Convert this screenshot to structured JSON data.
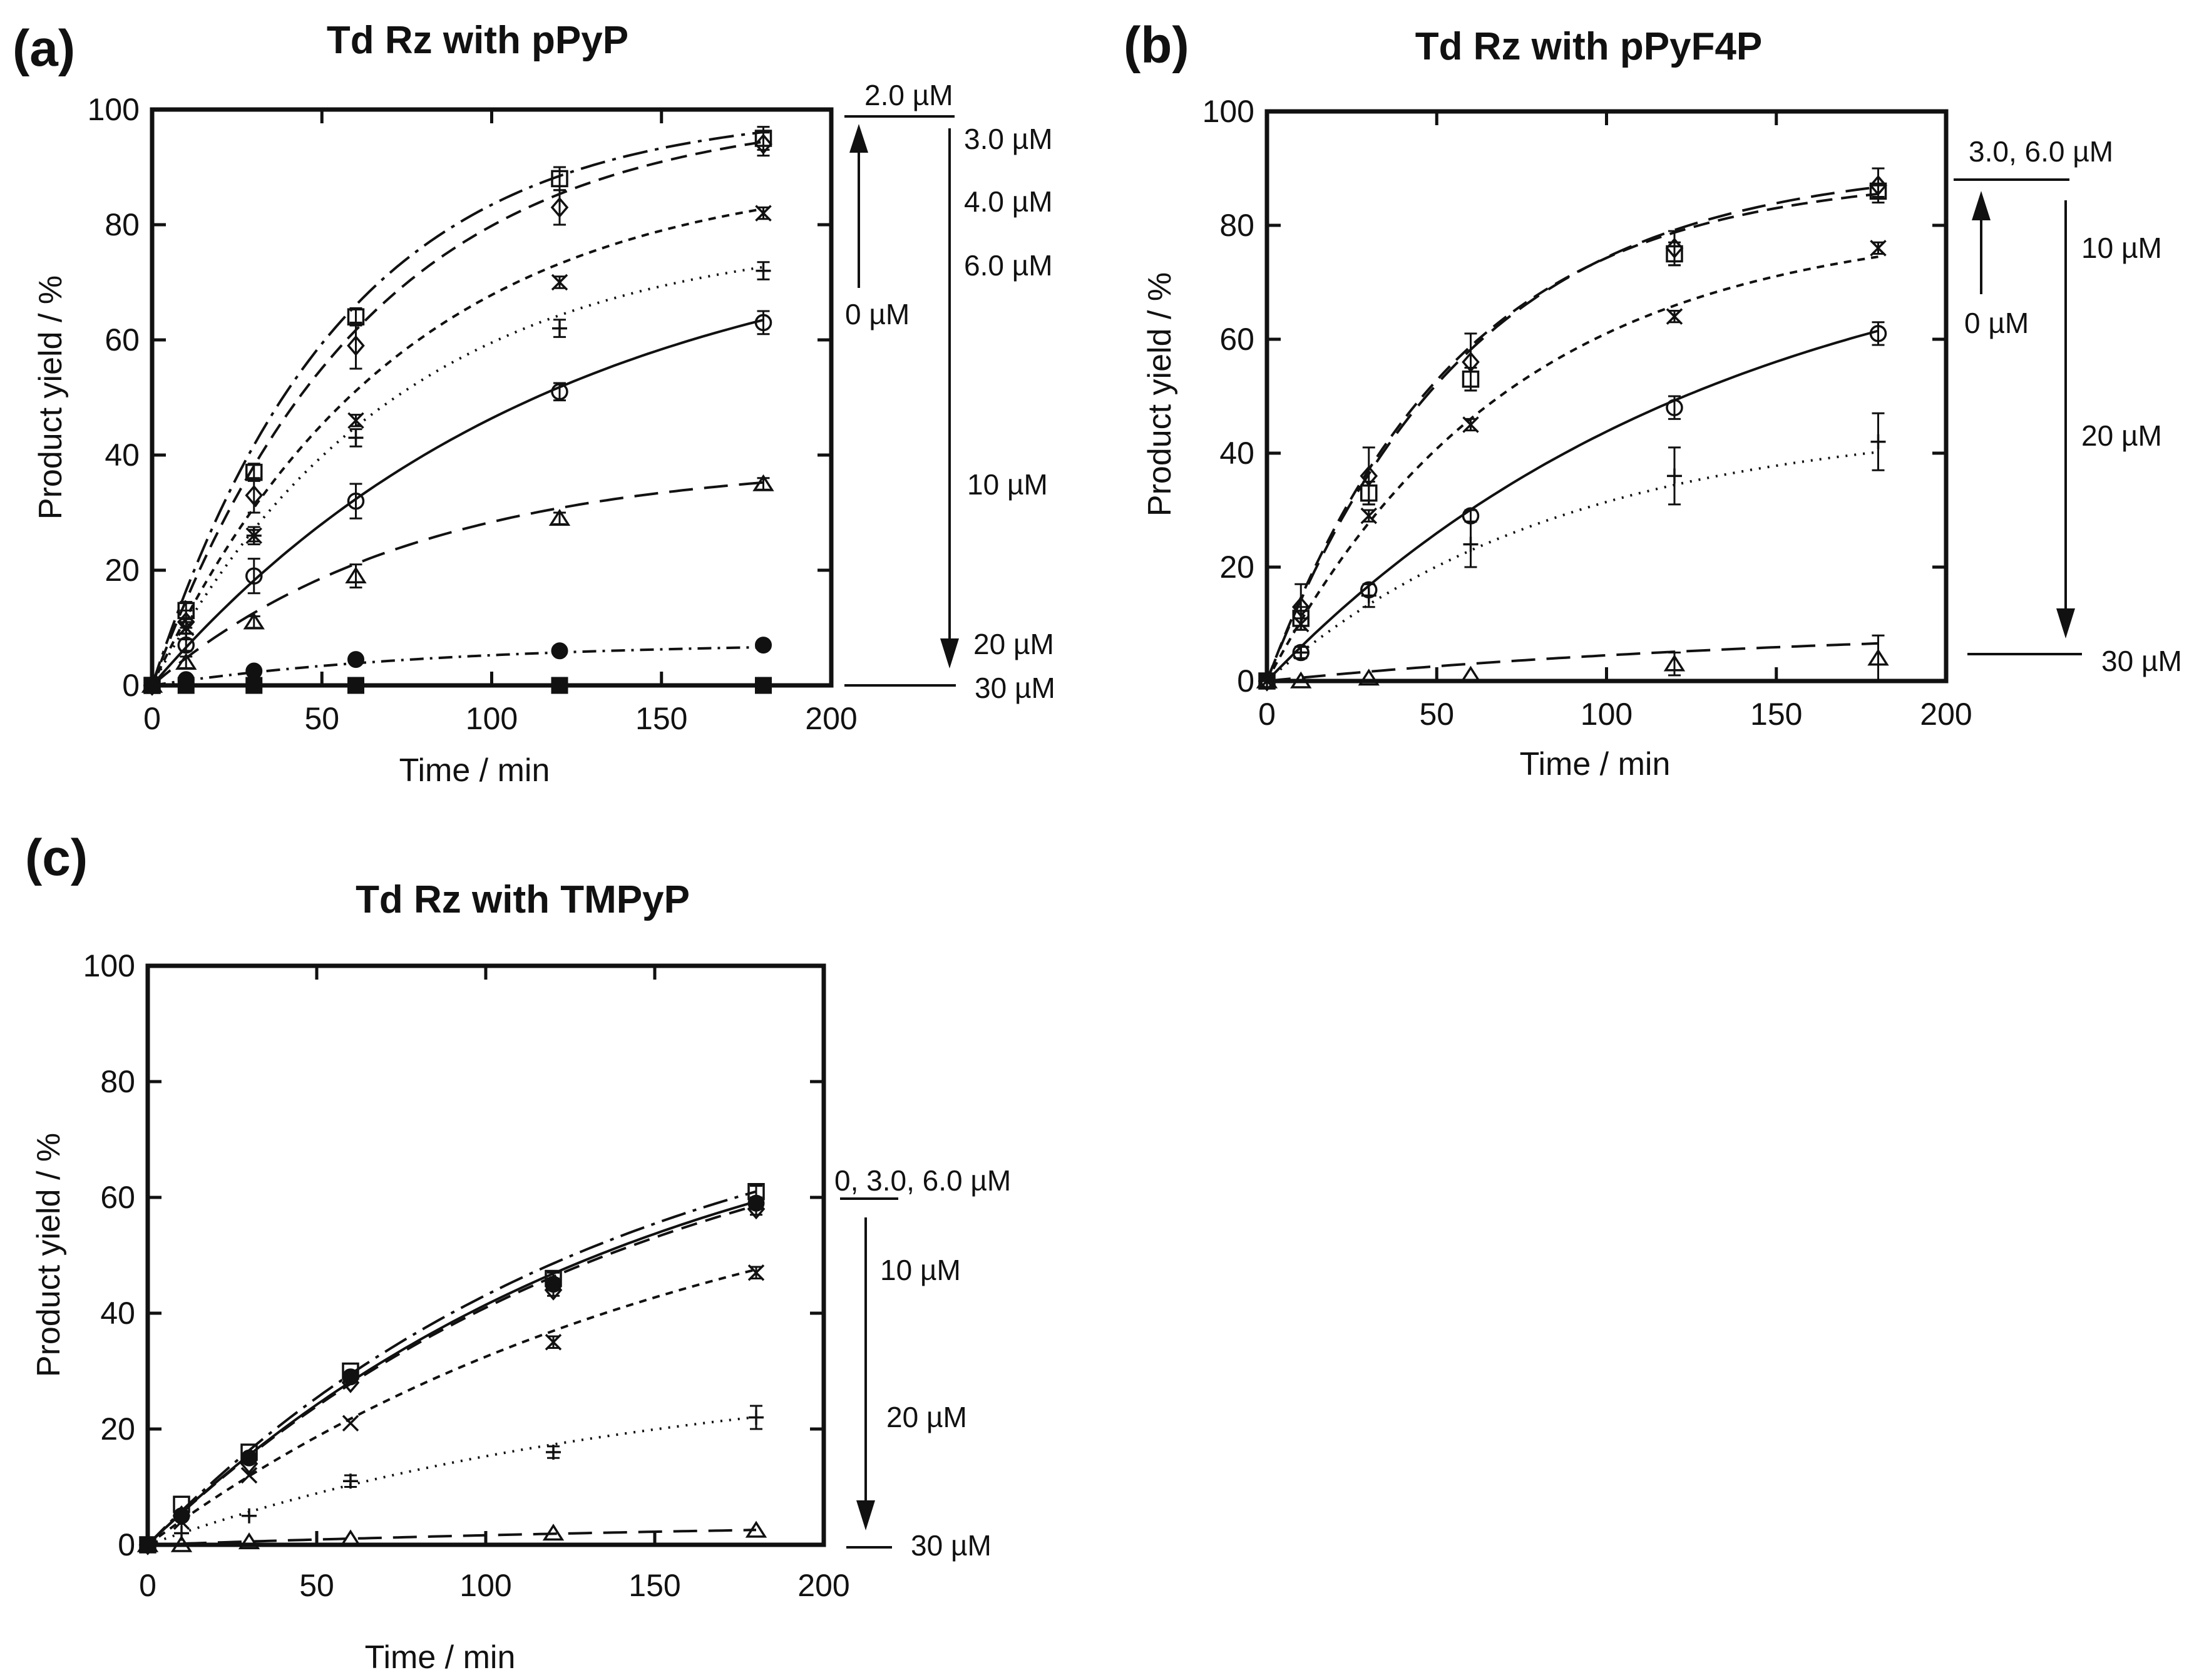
{
  "figure": {
    "units": {
      "x": "Time / min",
      "y": "Product yield / %"
    }
  },
  "chart_data": [
    {
      "id": "a",
      "panel_label": "(a)",
      "type": "line",
      "title": "Td Rz with pPyP",
      "xlabel": "Time / min",
      "ylabel": "Product yield / %",
      "xlim": [
        0,
        200
      ],
      "ylim": [
        0,
        100
      ],
      "xticks": [
        "0",
        "50",
        "100",
        "150",
        "200"
      ],
      "yticks": [
        "0",
        "20",
        "40",
        "60",
        "80",
        "100"
      ],
      "series": [
        {
          "name": "2.0 µM",
          "marker": "square",
          "dash": "longdashdot",
          "rate": 0.018,
          "plateau": 100,
          "x": [
            0,
            10,
            30,
            60,
            120,
            180
          ],
          "y": [
            0,
            13,
            37,
            64,
            88,
            95
          ],
          "err": [
            0,
            1.5,
            1.5,
            1.5,
            2,
            2
          ]
        },
        {
          "name": "3.0 µM",
          "marker": "diamond",
          "dash": "dash",
          "rate": 0.016,
          "plateau": 100,
          "x": [
            0,
            10,
            30,
            60,
            120,
            180
          ],
          "y": [
            0,
            11,
            33,
            59,
            83,
            94
          ],
          "err": [
            0,
            2,
            3,
            4,
            3,
            2
          ]
        },
        {
          "name": "4.0 µM",
          "marker": "x",
          "dash": "shortdash",
          "rate": 0.014,
          "plateau": 90,
          "x": [
            0,
            10,
            30,
            60,
            120,
            180
          ],
          "y": [
            0,
            10,
            26,
            46,
            70,
            82
          ],
          "err": [
            0,
            1,
            1.5,
            1,
            1,
            1
          ]
        },
        {
          "name": "6.0 µM",
          "marker": "plus",
          "dash": "dot",
          "rate": 0.014,
          "plateau": 79,
          "x": [
            0,
            10,
            30,
            60,
            120,
            180
          ],
          "y": [
            0,
            9,
            26,
            43,
            62,
            72
          ],
          "err": [
            0,
            1,
            1,
            1.5,
            1.5,
            1.5
          ]
        },
        {
          "name": "0 µM",
          "marker": "circle",
          "dash": "solid",
          "rate": 0.0085,
          "plateau": 81,
          "x": [
            0,
            10,
            30,
            60,
            120,
            180
          ],
          "y": [
            0,
            7,
            19,
            32,
            51,
            63
          ],
          "err": [
            0,
            1,
            3,
            3,
            1.5,
            2
          ]
        },
        {
          "name": "10 µM",
          "marker": "triangle",
          "dash": "longdash",
          "rate": 0.013,
          "plateau": 39,
          "x": [
            0,
            10,
            30,
            60,
            120,
            180
          ],
          "y": [
            0,
            4,
            11,
            19,
            29,
            35
          ],
          "err": [
            0,
            1,
            1,
            2,
            1,
            1
          ]
        },
        {
          "name": "20 µM",
          "marker": "filled-circle",
          "dash": "dashdot",
          "rate": 0.012,
          "plateau": 7.5,
          "x": [
            0,
            10,
            30,
            60,
            120,
            180
          ],
          "y": [
            0,
            1,
            2.5,
            4.5,
            6,
            7
          ],
          "err": [
            0,
            0,
            0,
            0,
            0,
            0
          ]
        },
        {
          "name": "30 µM",
          "marker": "filled-square",
          "dash": "solid",
          "rate": 0.01,
          "plateau": 0.2,
          "x": [
            0,
            10,
            30,
            60,
            120,
            180
          ],
          "y": [
            0,
            0,
            0,
            0,
            0,
            0
          ],
          "err": [
            0,
            0,
            0,
            0,
            0,
            0
          ]
        }
      ],
      "annotations": {
        "top_label": "2.0 µM",
        "arrow_up_label": "0 µM",
        "right_labels": [
          {
            "text": "3.0 µM",
            "value": 96
          },
          {
            "text": "4.0 µM",
            "value": 85
          },
          {
            "text": "6.0 µM",
            "value": 74
          },
          {
            "text": "10 µM",
            "value": 36
          },
          {
            "text": "20 µM",
            "value": 7
          }
        ],
        "bottom_label": "30 µM"
      }
    },
    {
      "id": "b",
      "panel_label": "(b)",
      "type": "line",
      "title": "Td Rz with pPyF4P",
      "xlabel": "Time / min",
      "ylabel": "Product yield / %",
      "xlim": [
        0,
        200
      ],
      "ylim": [
        0,
        100
      ],
      "xticks": [
        "0",
        "50",
        "100",
        "150",
        "200"
      ],
      "yticks": [
        "0",
        "20",
        "40",
        "60",
        "80",
        "100"
      ],
      "series": [
        {
          "name": "3.0 µM",
          "marker": "diamond",
          "dash": "dash",
          "rate": 0.018,
          "plateau": 89,
          "x": [
            0,
            10,
            30,
            60,
            120,
            180
          ],
          "y": [
            0,
            13,
            36,
            56,
            76,
            87
          ],
          "err": [
            0,
            4,
            5,
            5,
            3,
            3
          ]
        },
        {
          "name": "6.0 µM",
          "marker": "square",
          "dash": "longdash",
          "rate": 0.017,
          "plateau": 91,
          "x": [
            0,
            10,
            30,
            60,
            120,
            180
          ],
          "y": [
            0,
            11,
            33,
            53,
            75,
            86
          ],
          "err": [
            0,
            2,
            2,
            2,
            2,
            1
          ]
        },
        {
          "name": "10 µM",
          "marker": "x",
          "dash": "shortdash",
          "rate": 0.014,
          "plateau": 81,
          "x": [
            0,
            10,
            30,
            60,
            120,
            180
          ],
          "y": [
            0,
            10,
            29,
            45,
            64,
            76
          ],
          "err": [
            0,
            1,
            1,
            1,
            1,
            1
          ]
        },
        {
          "name": "0 µM",
          "marker": "circle",
          "dash": "solid",
          "rate": 0.0075,
          "plateau": 83,
          "x": [
            0,
            10,
            30,
            60,
            120,
            180
          ],
          "y": [
            0,
            5,
            16,
            29,
            48,
            61
          ],
          "err": [
            0,
            1,
            1,
            1,
            2,
            2
          ]
        },
        {
          "name": "20 µM",
          "marker": "plus",
          "dash": "dot",
          "rate": 0.0115,
          "plateau": 46,
          "x": [
            0,
            10,
            30,
            60,
            120,
            180
          ],
          "y": [
            0,
            5,
            15,
            24,
            36,
            42
          ],
          "err": [
            0,
            1,
            2,
            4,
            5,
            5
          ]
        },
        {
          "name": "30 µM",
          "marker": "triangle",
          "dash": "longdash",
          "rate": 0.006,
          "plateau": 10,
          "x": [
            0,
            10,
            30,
            60,
            120,
            180
          ],
          "y": [
            0,
            0,
            0.5,
            1,
            3,
            4
          ],
          "err": [
            0,
            0,
            0,
            0,
            2,
            4
          ]
        }
      ],
      "annotations": {
        "top_label": "3.0, 6.0 µM",
        "arrow_up_label": "0 µM",
        "right_labels": [
          {
            "text": "10 µM",
            "value": 75
          },
          {
            "text": "20 µM",
            "value": 42
          }
        ],
        "bottom_label": "30 µM"
      }
    },
    {
      "id": "c",
      "panel_label": "(c)",
      "type": "line",
      "title": "Td Rz with TMPyP",
      "xlabel": "Time / min",
      "ylabel": "Product yield / %",
      "xlim": [
        0,
        200
      ],
      "ylim": [
        0,
        100
      ],
      "xticks": [
        "0",
        "50",
        "100",
        "150",
        "200"
      ],
      "yticks": [
        "0",
        "20",
        "40",
        "60",
        "80",
        "100"
      ],
      "series": [
        {
          "name": "3.0 µM",
          "marker": "square",
          "dash": "longdashdot",
          "rate": 0.0072,
          "plateau": 84,
          "x": [
            0,
            10,
            30,
            60,
            120,
            180
          ],
          "y": [
            0,
            7,
            16,
            30,
            46,
            61
          ],
          "err": [
            0,
            0,
            0,
            0,
            1,
            1
          ]
        },
        {
          "name": "0 µM",
          "marker": "filled-circle",
          "dash": "solid",
          "rate": 0.0068,
          "plateau": 84,
          "x": [
            0,
            10,
            30,
            60,
            120,
            180
          ],
          "y": [
            0,
            5,
            15,
            29,
            45,
            59
          ],
          "err": [
            0,
            0,
            0,
            0,
            1,
            1
          ]
        },
        {
          "name": "6.0 µM",
          "marker": "diamond",
          "dash": "dash",
          "rate": 0.0068,
          "plateau": 83,
          "x": [
            0,
            10,
            30,
            60,
            120,
            180
          ],
          "y": [
            0,
            5,
            14,
            28,
            44,
            58
          ],
          "err": [
            0,
            0,
            0,
            0,
            1,
            1
          ]
        },
        {
          "name": "10 µM",
          "marker": "x",
          "dash": "shortdash",
          "rate": 0.006,
          "plateau": 72,
          "x": [
            0,
            10,
            30,
            60,
            120,
            180
          ],
          "y": [
            0,
            4,
            12,
            21,
            35,
            47
          ],
          "err": [
            0,
            0,
            0,
            0,
            1,
            1
          ]
        },
        {
          "name": "20 µM",
          "marker": "plus",
          "dash": "dot",
          "rate": 0.0065,
          "plateau": 32,
          "x": [
            0,
            10,
            30,
            60,
            120,
            180
          ],
          "y": [
            0,
            2,
            5,
            11,
            16,
            22
          ],
          "err": [
            0,
            0,
            0,
            1,
            1,
            2
          ]
        },
        {
          "name": "30 µM",
          "marker": "triangle",
          "dash": "longdash",
          "rate": 0.004,
          "plateau": 5,
          "x": [
            0,
            10,
            30,
            60,
            120,
            180
          ],
          "y": [
            0,
            0,
            0.5,
            1,
            2,
            2.5
          ],
          "err": [
            0,
            0,
            0,
            0,
            0,
            0
          ]
        }
      ],
      "annotations": {
        "top_label": "0, 3.0, 6.0 µM",
        "arrow_up_label": "",
        "right_labels": [
          {
            "text": "10 µM",
            "value": 48
          },
          {
            "text": "20 µM",
            "value": 22
          }
        ],
        "bottom_label": "30 µM"
      }
    }
  ]
}
